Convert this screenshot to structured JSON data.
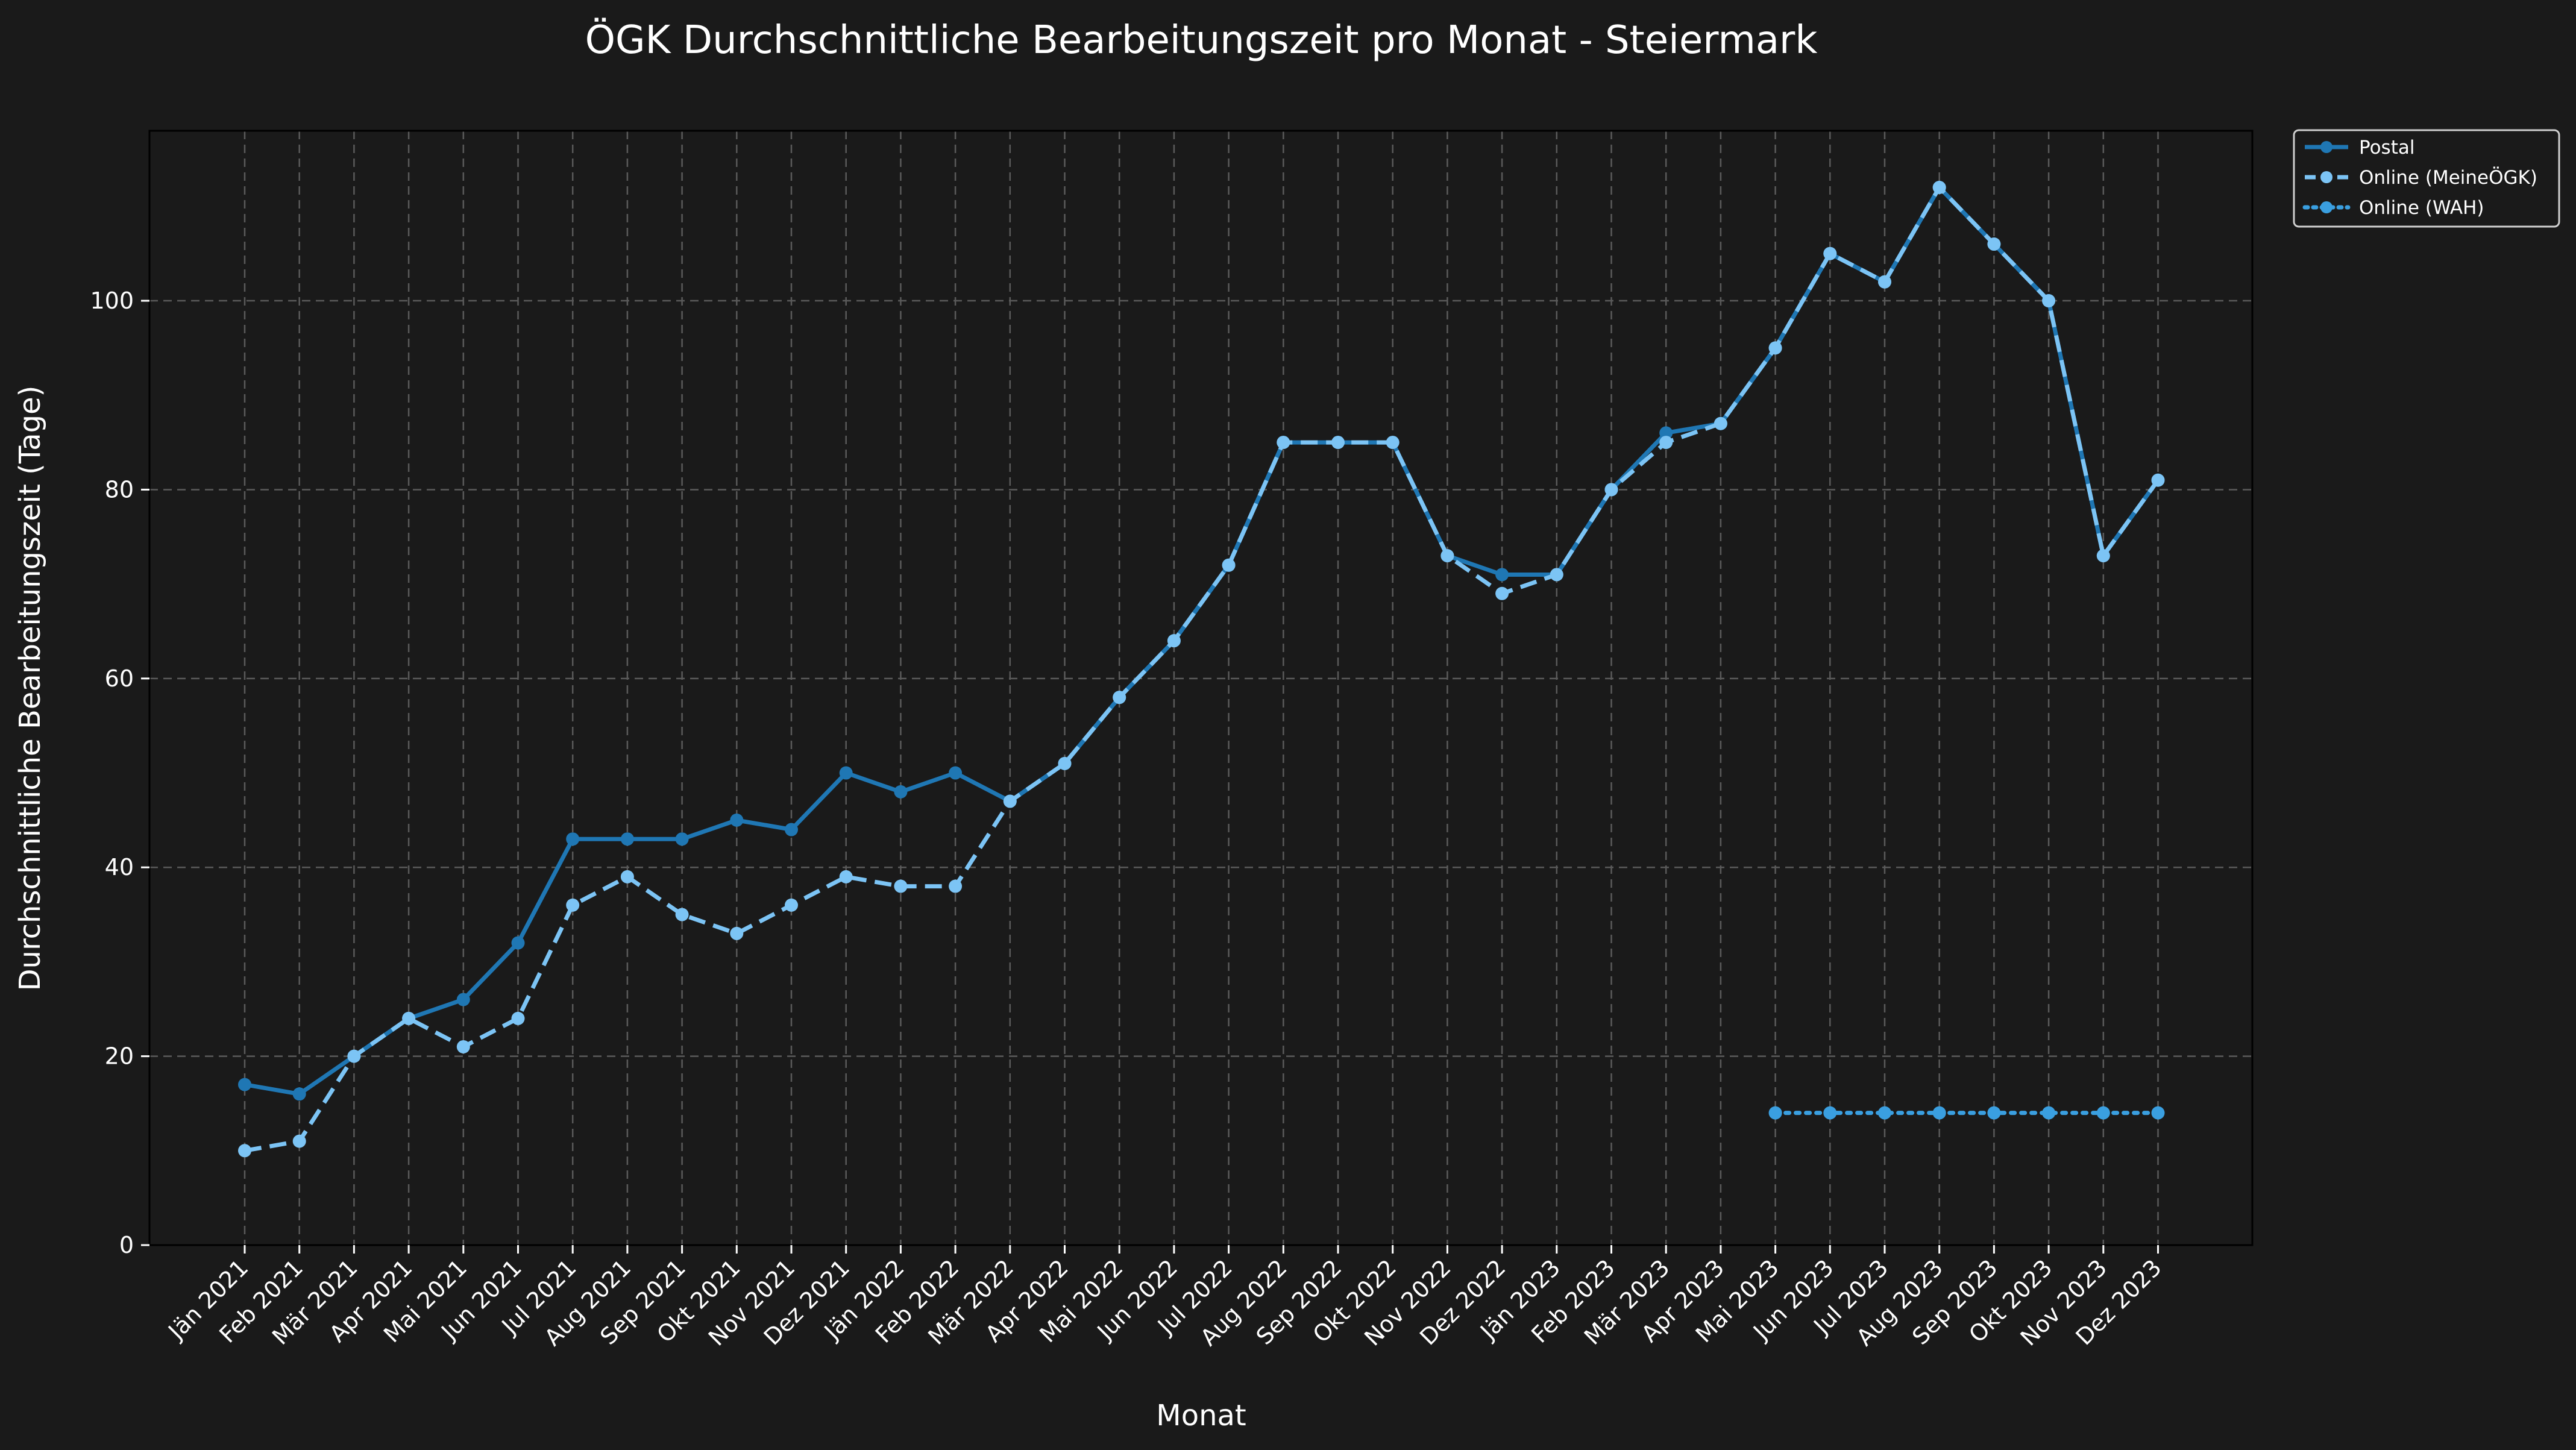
{
  "chart_data": {
    "type": "line",
    "title": "ÖGK Durchschnittliche Bearbeitungszeit pro Monat - Steiermark",
    "xlabel": "Monat",
    "ylabel": "Durchschnittliche Bearbeitungszeit (Tage)",
    "ylim": [
      0,
      118
    ],
    "yticks": [
      0,
      20,
      40,
      60,
      80,
      100
    ],
    "grid": true,
    "legend_position": "outside-top-right",
    "categories": [
      "Jän 2021",
      "Feb 2021",
      "Mär 2021",
      "Apr 2021",
      "Mai 2021",
      "Jun 2021",
      "Jul 2021",
      "Aug 2021",
      "Sep 2021",
      "Okt 2021",
      "Nov 2021",
      "Dez 2021",
      "Jän 2022",
      "Feb 2022",
      "Mär 2022",
      "Apr 2022",
      "Mai 2022",
      "Jun 2022",
      "Jul 2022",
      "Aug 2022",
      "Sep 2022",
      "Okt 2022",
      "Nov 2022",
      "Dez 2022",
      "Jän 2023",
      "Feb 2023",
      "Mär 2023",
      "Apr 2023",
      "Mai 2023",
      "Jun 2023",
      "Jul 2023",
      "Aug 2023",
      "Sep 2023",
      "Okt 2023",
      "Nov 2023",
      "Dez 2023"
    ],
    "series": [
      {
        "name": "Postal",
        "color": "#1f77b4",
        "line_style": "solid",
        "values": [
          17,
          16,
          20,
          24,
          26,
          32,
          43,
          43,
          43,
          45,
          44,
          50,
          48,
          50,
          47,
          51,
          58,
          64,
          72,
          85,
          85,
          85,
          73,
          71,
          71,
          80,
          86,
          87,
          95,
          105,
          102,
          112,
          106,
          100,
          73,
          81
        ]
      },
      {
        "name": "Online (MeineÖGK)",
        "color": "#7cc4f5",
        "line_style": "dashed",
        "values": [
          10,
          11,
          20,
          24,
          21,
          24,
          36,
          39,
          35,
          33,
          36,
          39,
          38,
          38,
          47,
          51,
          58,
          64,
          72,
          85,
          85,
          85,
          73,
          69,
          71,
          80,
          85,
          87,
          95,
          105,
          102,
          112,
          106,
          100,
          73,
          81
        ]
      },
      {
        "name": "Online (WAH)",
        "color": "#3a9fe0",
        "line_style": "dotted",
        "values": [
          null,
          null,
          null,
          null,
          null,
          null,
          null,
          null,
          null,
          null,
          null,
          null,
          null,
          null,
          null,
          null,
          null,
          null,
          null,
          null,
          null,
          null,
          null,
          null,
          null,
          null,
          null,
          null,
          14,
          14,
          14,
          14,
          14,
          14,
          14,
          14
        ]
      }
    ]
  }
}
